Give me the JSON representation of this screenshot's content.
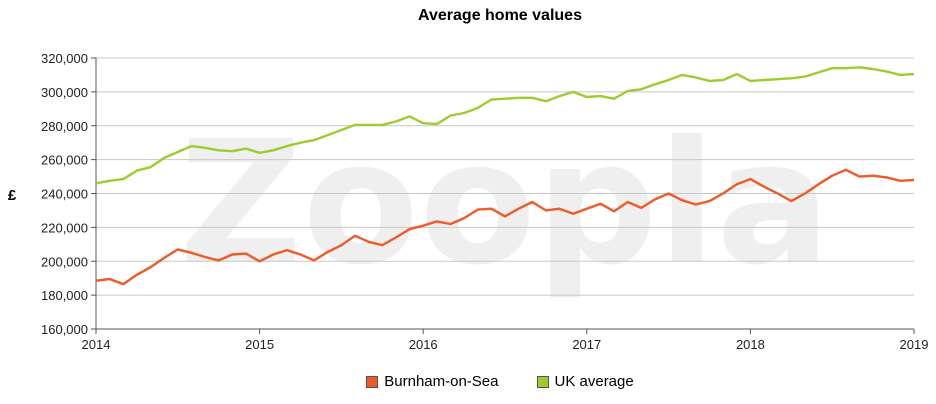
{
  "chart_data": {
    "type": "line",
    "title": "Average home values",
    "ylabel": "£",
    "xlabel": "",
    "xlim": [
      2014,
      2019
    ],
    "ylim": [
      160000,
      320000
    ],
    "yticks": [
      "160,000",
      "180,000",
      "200,000",
      "220,000",
      "240,000",
      "260,000",
      "280,000",
      "300,000",
      "320,000"
    ],
    "xticks": [
      "2014",
      "2015",
      "2016",
      "2017",
      "2018",
      "2019"
    ],
    "grid": true,
    "legend": "bottom",
    "watermark": "Zoopla",
    "series": [
      {
        "name": "Burnham-on-Sea",
        "color": "#f05a28",
        "x": [
          2014.0,
          2014.083,
          2014.167,
          2014.25,
          2014.333,
          2014.417,
          2014.5,
          2014.583,
          2014.667,
          2014.75,
          2014.833,
          2014.917,
          2015.0,
          2015.083,
          2015.167,
          2015.25,
          2015.333,
          2015.417,
          2015.5,
          2015.583,
          2015.667,
          2015.75,
          2015.833,
          2015.917,
          2016.0,
          2016.083,
          2016.167,
          2016.25,
          2016.333,
          2016.417,
          2016.5,
          2016.583,
          2016.667,
          2016.75,
          2016.833,
          2016.917,
          2017.0,
          2017.083,
          2017.167,
          2017.25,
          2017.333,
          2017.417,
          2017.5,
          2017.583,
          2017.667,
          2017.75,
          2017.833,
          2017.917,
          2018.0,
          2018.083,
          2018.167,
          2018.25,
          2018.333,
          2018.417,
          2018.5,
          2018.583,
          2018.667,
          2018.75,
          2018.833,
          2018.917,
          2019.0
        ],
        "values": [
          188500,
          189500,
          186500,
          192000,
          196500,
          202000,
          207000,
          205000,
          202500,
          200500,
          204000,
          204500,
          200000,
          204000,
          206500,
          204000,
          200500,
          205500,
          209500,
          215000,
          211500,
          209500,
          214000,
          219000,
          221000,
          223500,
          222000,
          225500,
          230500,
          231000,
          226500,
          231000,
          235000,
          230000,
          231000,
          228000,
          231000,
          234000,
          229500,
          235000,
          231500,
          236500,
          240000,
          236000,
          233500,
          235500,
          240000,
          245500,
          248500,
          244000,
          240000,
          235500,
          240000,
          245500,
          250500,
          254000,
          250000,
          250500,
          249500,
          247500,
          248000
        ]
      },
      {
        "name": "UK average",
        "color": "#9ccc2e",
        "x": [
          2014.0,
          2014.083,
          2014.167,
          2014.25,
          2014.333,
          2014.417,
          2014.5,
          2014.583,
          2014.667,
          2014.75,
          2014.833,
          2014.917,
          2015.0,
          2015.083,
          2015.167,
          2015.25,
          2015.333,
          2015.417,
          2015.5,
          2015.583,
          2015.667,
          2015.75,
          2015.833,
          2015.917,
          2016.0,
          2016.083,
          2016.167,
          2016.25,
          2016.333,
          2016.417,
          2016.5,
          2016.583,
          2016.667,
          2016.75,
          2016.833,
          2016.917,
          2017.0,
          2017.083,
          2017.167,
          2017.25,
          2017.333,
          2017.417,
          2017.5,
          2017.583,
          2017.667,
          2017.75,
          2017.833,
          2017.917,
          2018.0,
          2018.083,
          2018.167,
          2018.25,
          2018.333,
          2018.417,
          2018.5,
          2018.583,
          2018.667,
          2018.75,
          2018.833,
          2018.917,
          2019.0
        ],
        "values": [
          246000,
          247500,
          248500,
          253500,
          255500,
          261000,
          264500,
          268000,
          267000,
          265500,
          265000,
          266500,
          264000,
          265500,
          268000,
          270000,
          271500,
          274500,
          277500,
          280500,
          280500,
          280500,
          282500,
          285500,
          281500,
          281000,
          286000,
          287500,
          290500,
          295500,
          296000,
          296500,
          296500,
          294500,
          297500,
          300000,
          297000,
          297500,
          296000,
          300500,
          301500,
          304500,
          307000,
          310000,
          308500,
          306500,
          307000,
          310500,
          306500,
          307000,
          307500,
          308000,
          309000,
          311500,
          314000,
          314000,
          314500,
          313500,
          312000,
          310000,
          310500
        ]
      }
    ]
  }
}
